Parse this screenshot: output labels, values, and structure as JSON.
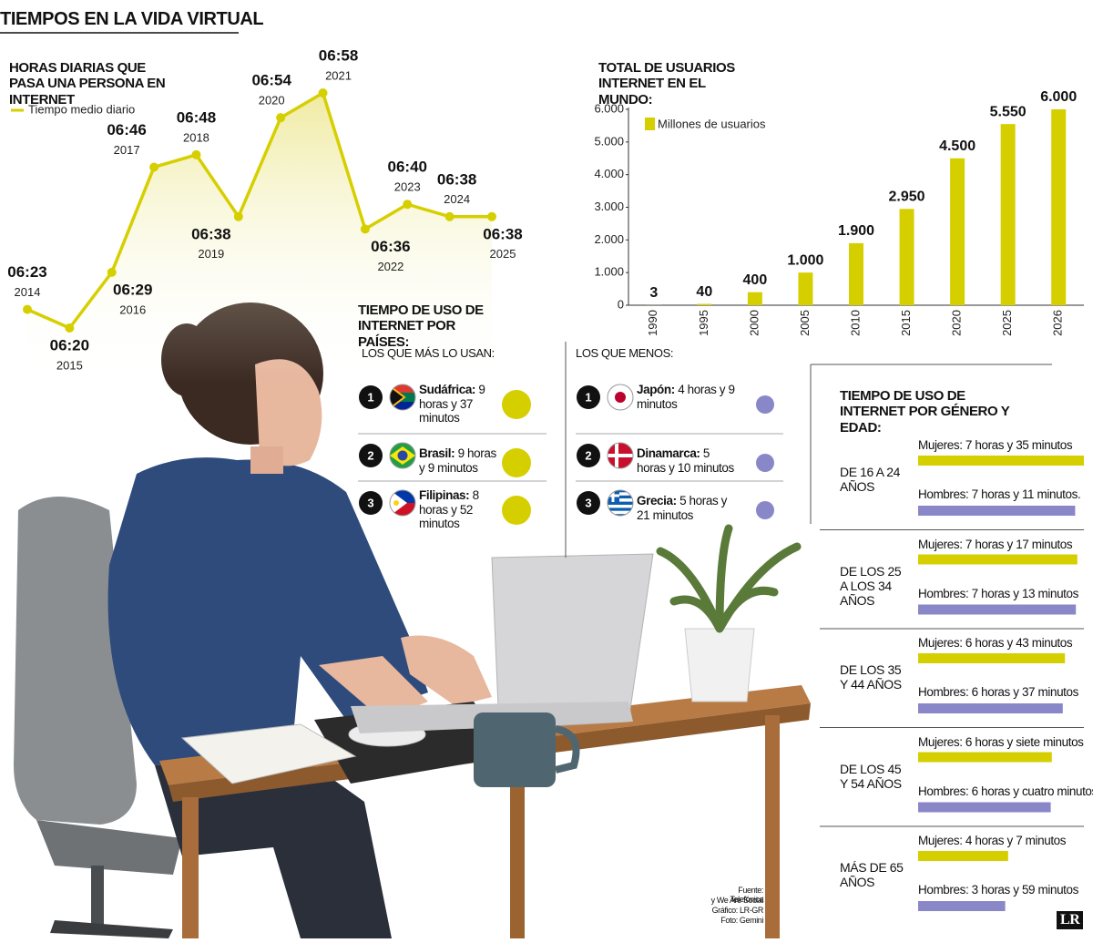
{
  "header": {
    "title": "TIEMPOS EN LA VIDA VIRTUAL"
  },
  "chart_data": [
    {
      "type": "line",
      "title": "HORAS DIARIAS QUE PASA UNA PERSONA EN INTERNET",
      "x": [
        2014,
        2015,
        2016,
        2017,
        2018,
        2019,
        2020,
        2021,
        2022,
        2023,
        2024,
        2025
      ],
      "series": [
        {
          "name": "Tiempo medio diario",
          "color": "#d6cf00",
          "values": [
            383,
            380,
            389,
            406,
            408,
            398,
            414,
            418,
            396,
            400,
            398,
            398
          ],
          "value_labels": [
            "06:23",
            "06:20",
            "06:29",
            "06:46",
            "06:48",
            "06:38",
            "06:54",
            "06:58",
            "06:36",
            "06:40",
            "06:38",
            "06:38"
          ]
        }
      ]
    },
    {
      "type": "bar",
      "title": "TOTAL DE USUARIOS INTERNET EN EL MUNDO:",
      "categories": [
        "1990",
        "1995",
        "2000",
        "2005",
        "2010",
        "2015",
        "2020",
        "2025",
        "2026"
      ],
      "series": [
        {
          "name": "Millones de usuarios",
          "color": "#d6cf00",
          "values": [
            3,
            40,
            400,
            1000,
            1900,
            2950,
            4500,
            5550,
            6000
          ],
          "value_labels": [
            "3",
            "40",
            "400",
            "1.000",
            "1.900",
            "2.950",
            "4.500",
            "5.550",
            "6.000"
          ]
        }
      ],
      "ylim": [
        0,
        6000
      ],
      "yticks": [
        0,
        {
          "value": 1000,
          "label": "1.000"
        },
        {
          "value": 2000,
          "label": "2.000"
        },
        {
          "value": 3000,
          "label": "3.000"
        },
        {
          "value": 4000,
          "label": "4.000"
        },
        {
          "value": 5000,
          "label": "5.000"
        },
        {
          "value": 6000,
          "label": "6.000"
        }
      ]
    },
    {
      "type": "hbar",
      "title": "TIEMPO DE USO DE INTERNET POR GÉNERO Y EDAD:",
      "categories": [
        "DE 16 A 24 AÑOS",
        "DE LOS 25 A LOS 34 AÑOS",
        "DE LOS 35 Y 44 AÑOS",
        "DE LOS 45 Y 54 AÑOS",
        "MÁS DE 65 AÑOS"
      ],
      "series": [
        {
          "color": "#d6cf00",
          "values": [
            455,
            437,
            403,
            367,
            247
          ],
          "value_labels": [
            "Mujeres: 7 horas y 35 minutos",
            "Mujeres: 7 horas y 17 minutos",
            "Mujeres: 6 horas y 43 minutos",
            "Mujeres: 6 horas y siete minutos",
            "Mujeres: 4 horas y 7 minutos"
          ]
        },
        {
          "color": "#8a87c9",
          "values": [
            431,
            433,
            397,
            364,
            239
          ],
          "value_labels": [
            "Hombres: 7 horas y 11 minutos.",
            "Hombres: 7 horas y 13 minutos",
            "Hombres: 6 horas y 37 minutos",
            "Hombres: 6 horas y cuatro minutos",
            "Hombres: 3 horas y 59 minutos"
          ]
        }
      ]
    }
  ],
  "countries": {
    "title": "TIEMPO DE USO DE INTERNET POR PAÍSES:",
    "most": {
      "label": "LOS QUE MÁS LO USAN:",
      "items": [
        {
          "rank": 1,
          "name": "Sudáfrica:",
          "time": "9 horas y 37 minutos"
        },
        {
          "rank": 2,
          "name": "Brasil:",
          "time": "9 horas y 9 minutos"
        },
        {
          "rank": 3,
          "name": "Filipinas:",
          "time": "8 horas y 52 minutos"
        }
      ]
    },
    "least": {
      "label": "LOS QUE MENOS:",
      "items": [
        {
          "rank": 1,
          "name": "Japón:",
          "time": "4 horas y 9 minutos"
        },
        {
          "rank": 2,
          "name": "Dinamarca:",
          "time": "5 horas y 10 minutos"
        },
        {
          "rank": 3,
          "name": "Grecia:",
          "time": "5 horas y 21 minutos"
        }
      ]
    }
  },
  "source": [
    "Fuente: Telefónica",
    "y We Are Social",
    "Gráfico: LR-GR",
    "Foto: Gemini"
  ],
  "logo": "LR"
}
